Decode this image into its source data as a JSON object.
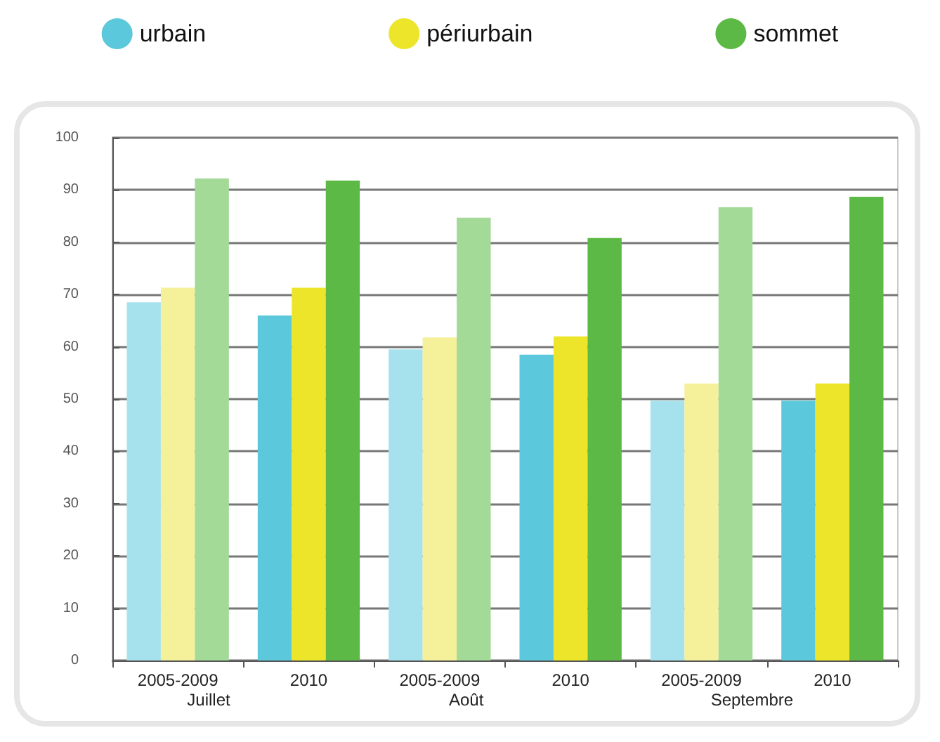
{
  "chart_data": {
    "type": "bar",
    "categories": [
      "2005-2009",
      "2010",
      "2005-2009",
      "2010",
      "2005-2009",
      "2010"
    ],
    "series": [
      {
        "name": "urbain",
        "color": "#5bc8dc",
        "colors": [
          "#a6e2ee",
          "#5bc8dc",
          "#a6e2ee",
          "#5bc8dc",
          "#a6e2ee",
          "#5bc8dc"
        ],
        "values": [
          68.5,
          66,
          59.5,
          58.5,
          49.7,
          49.7
        ]
      },
      {
        "name": "périurbain",
        "color": "#ece52a",
        "colors": [
          "#f5f19a",
          "#ece52a",
          "#f5f19a",
          "#ece52a",
          "#f5f19a",
          "#ece52a"
        ],
        "values": [
          71.3,
          71.3,
          61.8,
          62,
          53,
          53
        ]
      },
      {
        "name": "sommet",
        "color": "#5cb946",
        "colors": [
          "#a3da97",
          "#5cb946",
          "#a3da97",
          "#5cb946",
          "#a3da97",
          "#5cb946"
        ],
        "values": [
          92.2,
          91.8,
          84.7,
          80.8,
          86.7,
          88.7
        ]
      }
    ],
    "annotations": [
      "Juillet",
      "Août",
      "Septembre"
    ],
    "ylim": [
      0,
      100
    ],
    "yticks": [
      0,
      10,
      20,
      30,
      40,
      50,
      60,
      70,
      80,
      90,
      100
    ],
    "grid": "y",
    "legend": "top"
  }
}
